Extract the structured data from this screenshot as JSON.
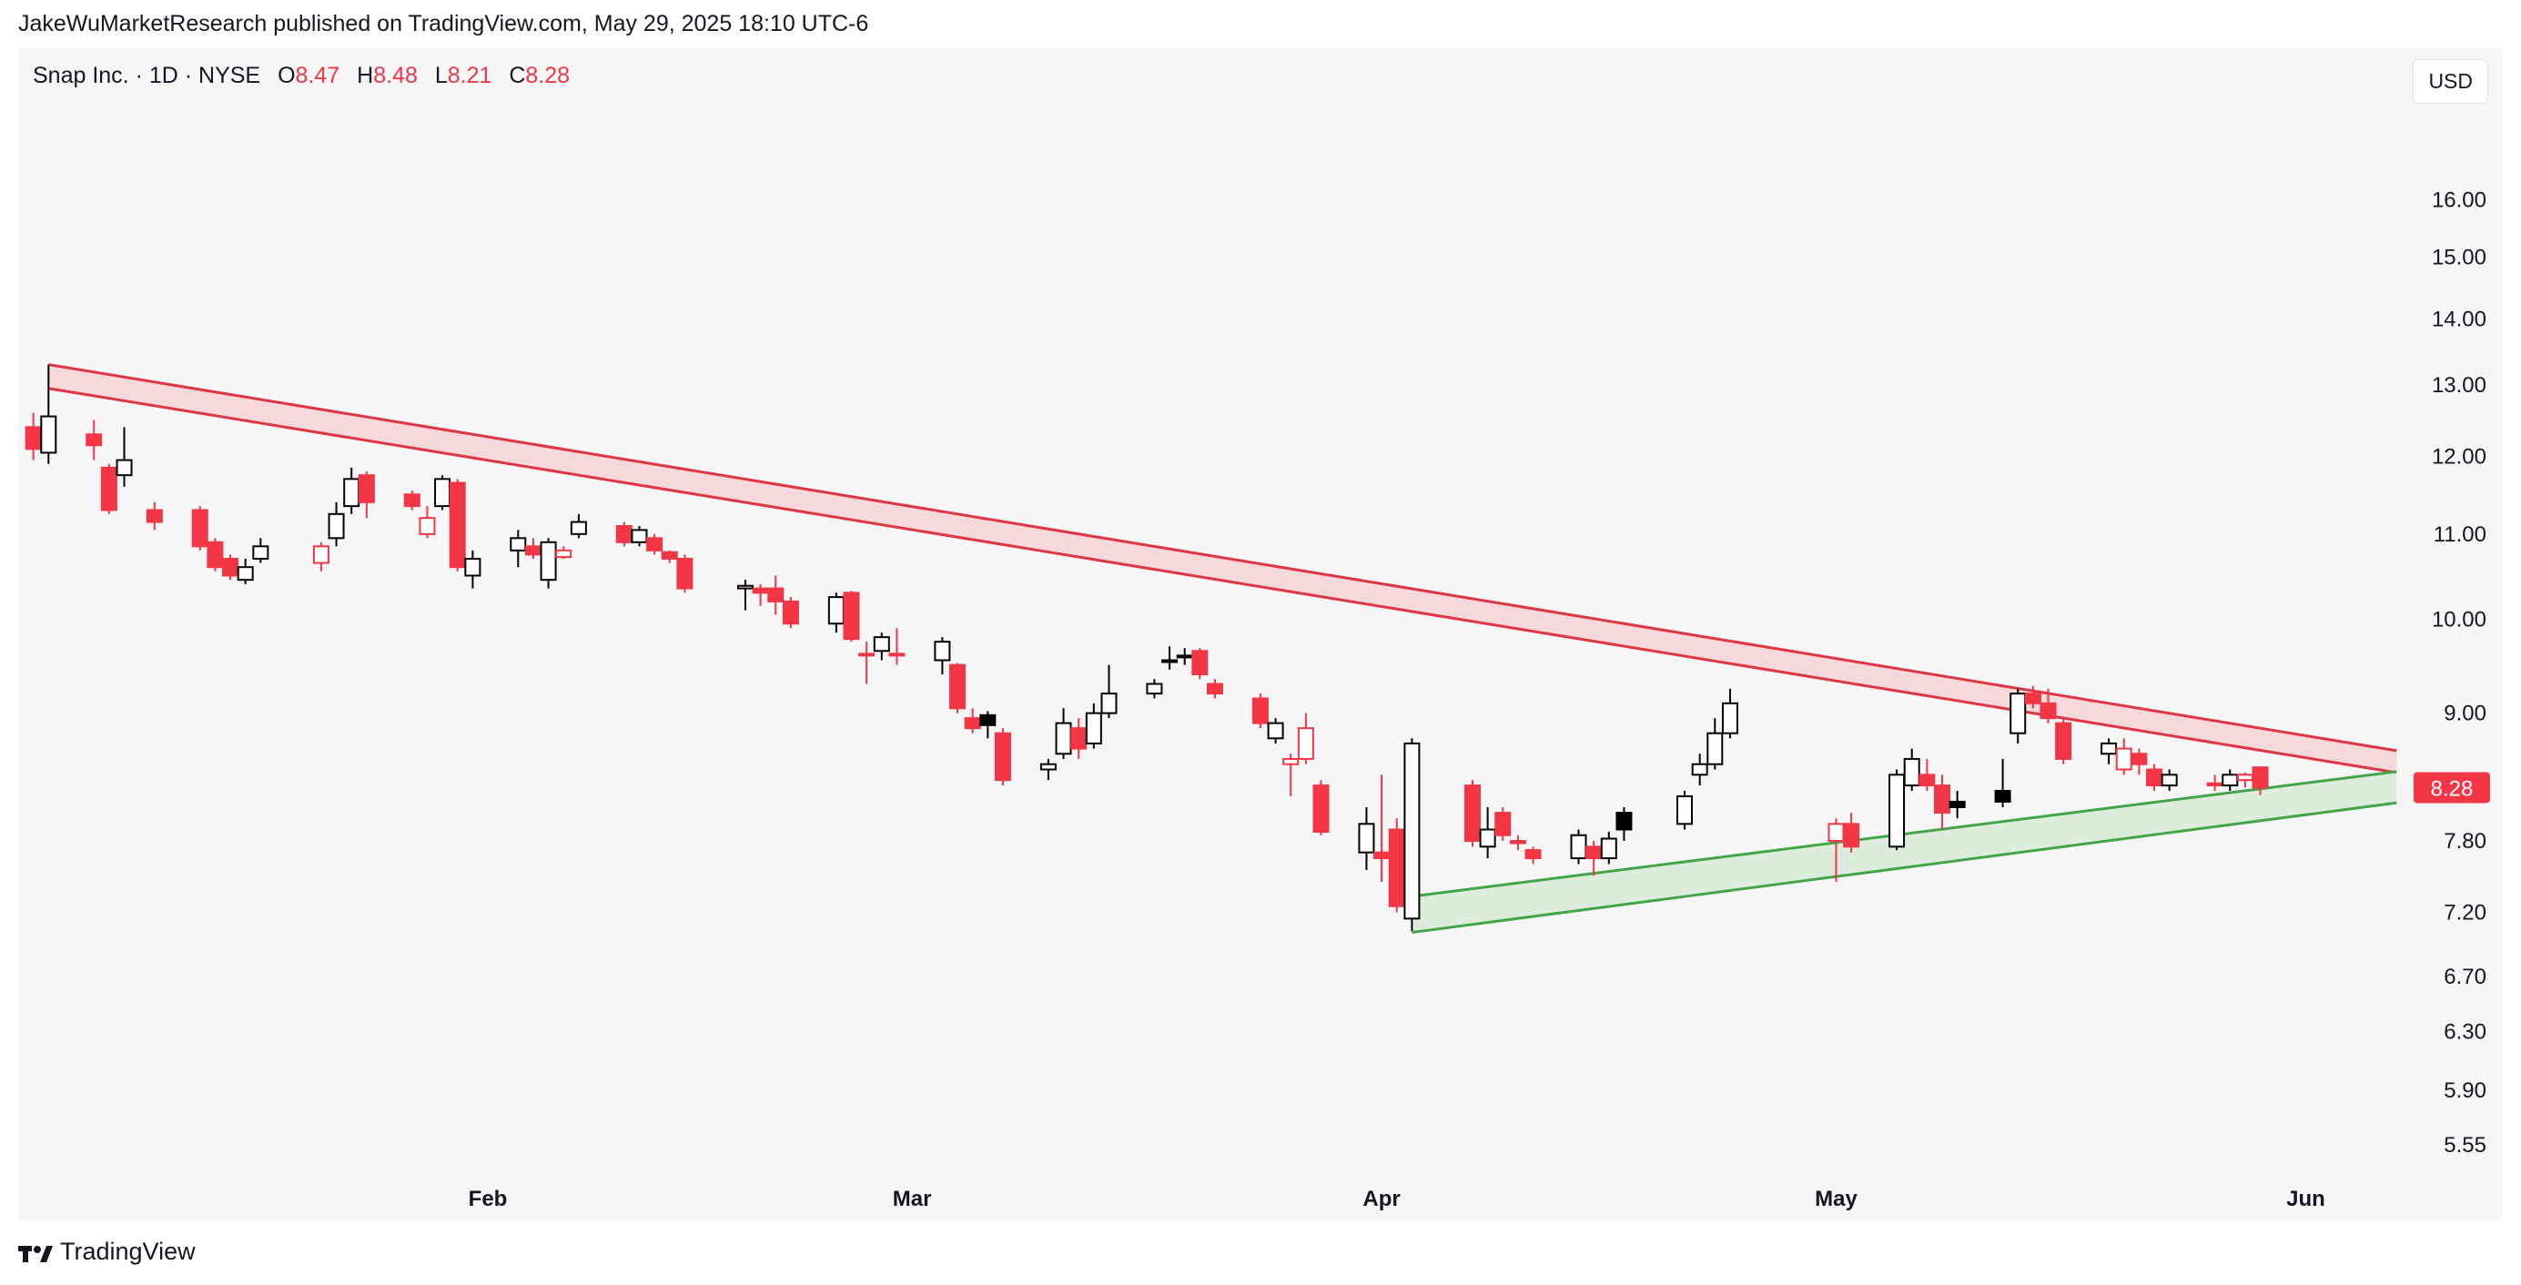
{
  "header": {
    "text": "JakeWuMarketResearch published on TradingView.com, May 29, 2025 18:10 UTC-6"
  },
  "symbol": {
    "title": "Snap Inc. · 1D · NYSE",
    "open_label": "O",
    "open": "8.47",
    "high_label": "H",
    "high": "8.48",
    "low_label": "L",
    "low": "8.21",
    "close_label": "C",
    "close": "8.28"
  },
  "currency_button": "USD",
  "last_price_label": "8.28",
  "footer": {
    "brand": "TradingView",
    "logo_icon": "tradingview-logo-icon"
  },
  "colors": {
    "up": "#000000",
    "down": "#f23645",
    "resistance": "#e03545",
    "resistance_fill": "#f7d6d9",
    "support": "#44a548",
    "support_fill": "#d9ecd9",
    "panel_bg": "#f6f6f6"
  },
  "chart_data": {
    "type": "candlestick",
    "title": "Snap Inc. · 1D · NYSE",
    "x_tick_labels": [
      "Feb",
      "Mar",
      "Apr",
      "May",
      "Jun"
    ],
    "x_tick_dates": [
      "2025-02-01",
      "2025-03-01",
      "2025-04-01",
      "2025-05-01",
      "2025-06-01"
    ],
    "y_scale": "log",
    "y_tick_labels": [
      "16.00",
      "15.00",
      "14.00",
      "13.00",
      "12.00",
      "11.00",
      "10.00",
      "9.00",
      "7.80",
      "7.20",
      "6.70",
      "6.30",
      "5.90",
      "5.55"
    ],
    "y_range": [
      5.3,
      18.2
    ],
    "x_range": [
      "2025-01-01",
      "2025-06-08"
    ],
    "grid": false,
    "candles": [
      {
        "date": "2025-01-02",
        "o": 12.4,
        "h": 12.6,
        "l": 11.95,
        "c": 12.1,
        "hollow": false
      },
      {
        "date": "2025-01-03",
        "o": 12.05,
        "h": 13.3,
        "l": 11.9,
        "c": 12.55,
        "hollow": true
      },
      {
        "date": "2025-01-06",
        "o": 12.3,
        "h": 12.5,
        "l": 11.95,
        "c": 12.15,
        "hollow": false
      },
      {
        "date": "2025-01-07",
        "o": 11.85,
        "h": 11.9,
        "l": 11.25,
        "c": 11.3,
        "hollow": false
      },
      {
        "date": "2025-01-08",
        "o": 11.75,
        "h": 12.4,
        "l": 11.6,
        "c": 11.95,
        "hollow": true
      },
      {
        "date": "2025-01-10",
        "o": 11.3,
        "h": 11.4,
        "l": 11.05,
        "c": 11.15,
        "hollow": false
      },
      {
        "date": "2025-01-13",
        "o": 11.3,
        "h": 11.35,
        "l": 10.8,
        "c": 10.85,
        "hollow": false
      },
      {
        "date": "2025-01-14",
        "o": 10.9,
        "h": 10.95,
        "l": 10.55,
        "c": 10.6,
        "hollow": false
      },
      {
        "date": "2025-01-15",
        "o": 10.7,
        "h": 10.75,
        "l": 10.45,
        "c": 10.5,
        "hollow": false
      },
      {
        "date": "2025-01-16",
        "o": 10.45,
        "h": 10.7,
        "l": 10.4,
        "c": 10.6,
        "hollow": true
      },
      {
        "date": "2025-01-17",
        "o": 10.7,
        "h": 10.95,
        "l": 10.65,
        "c": 10.85,
        "hollow": true
      },
      {
        "date": "2025-01-21",
        "o": 10.85,
        "h": 10.9,
        "l": 10.55,
        "c": 10.65,
        "hollow": true,
        "down": true
      },
      {
        "date": "2025-01-22",
        "o": 10.95,
        "h": 11.4,
        "l": 10.85,
        "c": 11.25,
        "hollow": true
      },
      {
        "date": "2025-01-23",
        "o": 11.35,
        "h": 11.85,
        "l": 11.25,
        "c": 11.7,
        "hollow": true
      },
      {
        "date": "2025-01-24",
        "o": 11.75,
        "h": 11.8,
        "l": 11.2,
        "c": 11.4,
        "hollow": false
      },
      {
        "date": "2025-01-27",
        "o": 11.5,
        "h": 11.55,
        "l": 11.3,
        "c": 11.35,
        "hollow": false
      },
      {
        "date": "2025-01-28",
        "o": 11.2,
        "h": 11.35,
        "l": 10.95,
        "c": 11.0,
        "hollow": true,
        "down": true
      },
      {
        "date": "2025-01-29",
        "o": 11.35,
        "h": 11.75,
        "l": 11.3,
        "c": 11.7,
        "hollow": true
      },
      {
        "date": "2025-01-30",
        "o": 11.65,
        "h": 11.7,
        "l": 10.55,
        "c": 10.6,
        "hollow": false
      },
      {
        "date": "2025-01-31",
        "o": 10.5,
        "h": 10.8,
        "l": 10.35,
        "c": 10.7,
        "hollow": true
      },
      {
        "date": "2025-02-03",
        "o": 10.8,
        "h": 11.05,
        "l": 10.6,
        "c": 10.95,
        "hollow": true
      },
      {
        "date": "2025-02-04",
        "o": 10.85,
        "h": 10.95,
        "l": 10.7,
        "c": 10.75,
        "hollow": false
      },
      {
        "date": "2025-02-05",
        "o": 10.45,
        "h": 10.95,
        "l": 10.35,
        "c": 10.9,
        "hollow": true
      },
      {
        "date": "2025-02-06",
        "o": 10.8,
        "h": 10.85,
        "l": 10.7,
        "c": 10.72,
        "hollow": true,
        "down": true
      },
      {
        "date": "2025-02-07",
        "o": 11.0,
        "h": 11.25,
        "l": 10.95,
        "c": 11.15,
        "hollow": true
      },
      {
        "date": "2025-02-10",
        "o": 11.1,
        "h": 11.15,
        "l": 10.85,
        "c": 10.9,
        "hollow": false
      },
      {
        "date": "2025-02-11",
        "o": 10.9,
        "h": 11.1,
        "l": 10.85,
        "c": 11.05,
        "hollow": true
      },
      {
        "date": "2025-02-12",
        "o": 10.95,
        "h": 11.0,
        "l": 10.75,
        "c": 10.8,
        "hollow": false
      },
      {
        "date": "2025-02-13",
        "o": 10.78,
        "h": 10.8,
        "l": 10.65,
        "c": 10.7,
        "hollow": false
      },
      {
        "date": "2025-02-14",
        "o": 10.7,
        "h": 10.75,
        "l": 10.3,
        "c": 10.35,
        "hollow": false
      },
      {
        "date": "2025-02-18",
        "o": 10.38,
        "h": 10.45,
        "l": 10.1,
        "c": 10.35,
        "hollow": true
      },
      {
        "date": "2025-02-19",
        "o": 10.35,
        "h": 10.4,
        "l": 10.15,
        "c": 10.3,
        "hollow": false
      },
      {
        "date": "2025-02-20",
        "o": 10.35,
        "h": 10.5,
        "l": 10.05,
        "c": 10.2,
        "hollow": false
      },
      {
        "date": "2025-02-21",
        "o": 10.2,
        "h": 10.25,
        "l": 9.9,
        "c": 9.95,
        "hollow": false
      },
      {
        "date": "2025-02-24",
        "o": 9.95,
        "h": 10.3,
        "l": 9.85,
        "c": 10.25,
        "hollow": true
      },
      {
        "date": "2025-02-25",
        "o": 10.3,
        "h": 10.32,
        "l": 9.75,
        "c": 9.78,
        "hollow": false
      },
      {
        "date": "2025-02-26",
        "o": 9.62,
        "h": 9.75,
        "l": 9.3,
        "c": 9.6,
        "hollow": false
      },
      {
        "date": "2025-02-27",
        "o": 9.65,
        "h": 9.85,
        "l": 9.55,
        "c": 9.8,
        "hollow": true
      },
      {
        "date": "2025-02-28",
        "o": 9.62,
        "h": 9.9,
        "l": 9.5,
        "c": 9.6,
        "hollow": false
      },
      {
        "date": "2025-03-03",
        "o": 9.55,
        "h": 9.8,
        "l": 9.4,
        "c": 9.75,
        "hollow": true
      },
      {
        "date": "2025-03-04",
        "o": 9.5,
        "h": 9.52,
        "l": 9.0,
        "c": 9.05,
        "hollow": false
      },
      {
        "date": "2025-03-05",
        "o": 8.95,
        "h": 9.05,
        "l": 8.8,
        "c": 8.85,
        "hollow": false
      },
      {
        "date": "2025-03-06",
        "o": 8.88,
        "h": 9.02,
        "l": 8.75,
        "c": 8.98,
        "hollow": false,
        "solid": true
      },
      {
        "date": "2025-03-07",
        "o": 8.8,
        "h": 8.85,
        "l": 8.3,
        "c": 8.35,
        "hollow": false
      },
      {
        "date": "2025-03-10",
        "o": 8.45,
        "h": 8.55,
        "l": 8.35,
        "c": 8.5,
        "hollow": true
      },
      {
        "date": "2025-03-11",
        "o": 8.6,
        "h": 9.05,
        "l": 8.55,
        "c": 8.9,
        "hollow": true
      },
      {
        "date": "2025-03-12",
        "o": 8.85,
        "h": 8.95,
        "l": 8.55,
        "c": 8.65,
        "hollow": false
      },
      {
        "date": "2025-03-13",
        "o": 8.7,
        "h": 9.1,
        "l": 8.65,
        "c": 9.0,
        "hollow": true
      },
      {
        "date": "2025-03-14",
        "o": 9.0,
        "h": 9.5,
        "l": 8.95,
        "c": 9.2,
        "hollow": true
      },
      {
        "date": "2025-03-17",
        "o": 9.2,
        "h": 9.35,
        "l": 9.15,
        "c": 9.3,
        "hollow": true
      },
      {
        "date": "2025-03-18",
        "o": 9.55,
        "h": 9.7,
        "l": 9.45,
        "c": 9.55,
        "hollow": true
      },
      {
        "date": "2025-03-19",
        "o": 9.6,
        "h": 9.68,
        "l": 9.5,
        "c": 9.6,
        "hollow": true
      },
      {
        "date": "2025-03-20",
        "o": 9.65,
        "h": 9.68,
        "l": 9.35,
        "c": 9.4,
        "hollow": false
      },
      {
        "date": "2025-03-21",
        "o": 9.3,
        "h": 9.35,
        "l": 9.15,
        "c": 9.2,
        "hollow": false
      },
      {
        "date": "2025-03-24",
        "o": 9.15,
        "h": 9.2,
        "l": 8.85,
        "c": 8.9,
        "hollow": false
      },
      {
        "date": "2025-03-25",
        "o": 8.75,
        "h": 8.95,
        "l": 8.7,
        "c": 8.9,
        "hollow": true
      },
      {
        "date": "2025-03-26",
        "o": 8.55,
        "h": 8.6,
        "l": 8.2,
        "c": 8.5,
        "hollow": true,
        "down": true
      },
      {
        "date": "2025-03-27",
        "o": 8.85,
        "h": 9.0,
        "l": 8.5,
        "c": 8.55,
        "hollow": true,
        "down": true
      },
      {
        "date": "2025-03-28",
        "o": 8.3,
        "h": 8.35,
        "l": 7.85,
        "c": 7.88,
        "hollow": false
      },
      {
        "date": "2025-03-31",
        "o": 7.7,
        "h": 8.1,
        "l": 7.55,
        "c": 7.95,
        "hollow": true
      },
      {
        "date": "2025-04-01",
        "o": 7.7,
        "h": 8.4,
        "l": 7.45,
        "c": 7.65,
        "hollow": false
      },
      {
        "date": "2025-04-02",
        "o": 7.9,
        "h": 8.0,
        "l": 7.2,
        "c": 7.25,
        "hollow": false
      },
      {
        "date": "2025-04-03",
        "o": 7.15,
        "h": 8.75,
        "l": 7.05,
        "c": 8.7,
        "hollow": true
      },
      {
        "date": "2025-04-07",
        "o": 8.3,
        "h": 8.35,
        "l": 7.75,
        "c": 7.8,
        "hollow": false
      },
      {
        "date": "2025-04-08",
        "o": 7.75,
        "h": 8.1,
        "l": 7.65,
        "c": 7.9,
        "hollow": true
      },
      {
        "date": "2025-04-09",
        "o": 8.05,
        "h": 8.1,
        "l": 7.8,
        "c": 7.85,
        "hollow": false
      },
      {
        "date": "2025-04-10",
        "o": 7.8,
        "h": 7.85,
        "l": 7.72,
        "c": 7.78,
        "hollow": false
      },
      {
        "date": "2025-04-11",
        "o": 7.72,
        "h": 7.75,
        "l": 7.6,
        "c": 7.65,
        "hollow": false
      },
      {
        "date": "2025-04-14",
        "o": 7.65,
        "h": 7.9,
        "l": 7.6,
        "c": 7.85,
        "hollow": true
      },
      {
        "date": "2025-04-15",
        "o": 7.75,
        "h": 7.8,
        "l": 7.5,
        "c": 7.65,
        "hollow": false
      },
      {
        "date": "2025-04-16",
        "o": 7.65,
        "h": 7.88,
        "l": 7.6,
        "c": 7.82,
        "hollow": true
      },
      {
        "date": "2025-04-17",
        "o": 7.9,
        "h": 8.1,
        "l": 7.8,
        "c": 8.05,
        "hollow": false,
        "solid": true
      },
      {
        "date": "2025-04-21",
        "o": 7.95,
        "h": 8.25,
        "l": 7.9,
        "c": 8.2,
        "hollow": true
      },
      {
        "date": "2025-04-22",
        "o": 8.4,
        "h": 8.6,
        "l": 8.3,
        "c": 8.5,
        "hollow": true
      },
      {
        "date": "2025-04-23",
        "o": 8.5,
        "h": 8.95,
        "l": 8.45,
        "c": 8.8,
        "hollow": true
      },
      {
        "date": "2025-04-24",
        "o": 8.8,
        "h": 9.25,
        "l": 8.75,
        "c": 9.1,
        "hollow": true
      },
      {
        "date": "2025-05-01",
        "o": 7.8,
        "h": 8.0,
        "l": 7.45,
        "c": 7.95,
        "hollow": true,
        "down": true
      },
      {
        "date": "2025-05-02",
        "o": 7.95,
        "h": 8.05,
        "l": 7.7,
        "c": 7.75,
        "hollow": false
      },
      {
        "date": "2025-05-05",
        "o": 7.75,
        "h": 8.45,
        "l": 7.72,
        "c": 8.4,
        "hollow": true
      },
      {
        "date": "2025-05-06",
        "o": 8.3,
        "h": 8.65,
        "l": 8.25,
        "c": 8.55,
        "hollow": true
      },
      {
        "date": "2025-05-07",
        "o": 8.4,
        "h": 8.55,
        "l": 8.25,
        "c": 8.3,
        "hollow": false
      },
      {
        "date": "2025-05-08",
        "o": 8.3,
        "h": 8.4,
        "l": 7.9,
        "c": 8.05,
        "hollow": false
      },
      {
        "date": "2025-05-09",
        "o": 8.1,
        "h": 8.25,
        "l": 8.0,
        "c": 8.15,
        "hollow": false,
        "solid": true
      },
      {
        "date": "2025-05-12",
        "o": 8.15,
        "h": 8.55,
        "l": 8.1,
        "c": 8.25,
        "hollow": false,
        "solid": true
      },
      {
        "date": "2025-05-13",
        "o": 8.8,
        "h": 9.25,
        "l": 8.7,
        "c": 9.2,
        "hollow": true
      },
      {
        "date": "2025-05-14",
        "o": 9.2,
        "h": 9.28,
        "l": 9.05,
        "c": 9.1,
        "hollow": false
      },
      {
        "date": "2025-05-15",
        "o": 9.1,
        "h": 9.25,
        "l": 8.9,
        "c": 8.95,
        "hollow": false
      },
      {
        "date": "2025-05-16",
        "o": 8.9,
        "h": 8.95,
        "l": 8.5,
        "c": 8.55,
        "hollow": false
      },
      {
        "date": "2025-05-19",
        "o": 8.7,
        "h": 8.75,
        "l": 8.5,
        "c": 8.6,
        "hollow": true
      },
      {
        "date": "2025-05-20",
        "o": 8.65,
        "h": 8.75,
        "l": 8.4,
        "c": 8.45,
        "hollow": true,
        "down": true
      },
      {
        "date": "2025-05-21",
        "o": 8.6,
        "h": 8.65,
        "l": 8.4,
        "c": 8.5,
        "hollow": false
      },
      {
        "date": "2025-05-22",
        "o": 8.45,
        "h": 8.5,
        "l": 8.25,
        "c": 8.3,
        "hollow": false
      },
      {
        "date": "2025-05-23",
        "o": 8.3,
        "h": 8.45,
        "l": 8.25,
        "c": 8.4,
        "hollow": true
      },
      {
        "date": "2025-05-26",
        "o": 8.3,
        "h": 8.4,
        "l": 8.25,
        "c": 8.32,
        "hollow": false
      },
      {
        "date": "2025-05-27",
        "o": 8.3,
        "h": 8.45,
        "l": 8.25,
        "c": 8.4,
        "hollow": true
      },
      {
        "date": "2025-05-28",
        "o": 8.35,
        "h": 8.42,
        "l": 8.28,
        "c": 8.4,
        "hollow": true,
        "down": true
      },
      {
        "date": "2025-05-29",
        "o": 8.47,
        "h": 8.48,
        "l": 8.21,
        "c": 8.28,
        "hollow": false
      }
    ],
    "resistance_channel": {
      "upper": [
        {
          "date": "2025-01-03",
          "price": 13.3
        },
        {
          "date": "2025-06-07",
          "price": 8.63
        }
      ],
      "lower": [
        {
          "date": "2025-01-03",
          "price": 12.95
        },
        {
          "date": "2025-06-07",
          "price": 8.42
        }
      ]
    },
    "support_channel": {
      "upper": [
        {
          "date": "2025-04-03",
          "price": 7.33
        },
        {
          "date": "2025-06-07",
          "price": 8.43
        }
      ],
      "lower": [
        {
          "date": "2025-04-03",
          "price": 7.04
        },
        {
          "date": "2025-06-07",
          "price": 8.14
        }
      ]
    }
  }
}
